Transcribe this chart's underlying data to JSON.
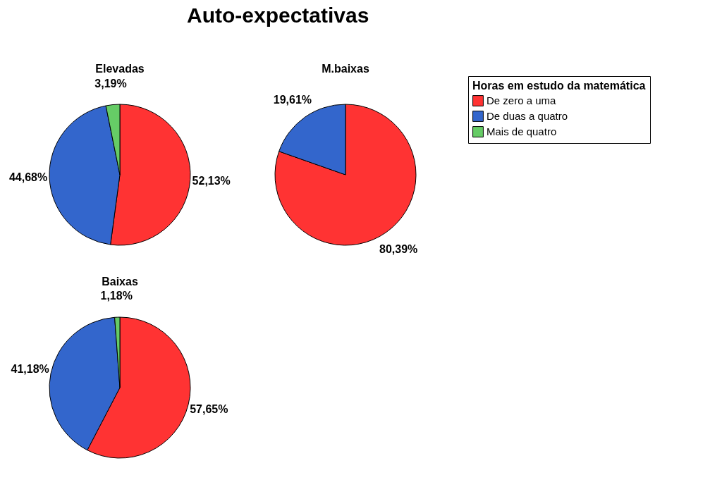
{
  "chart_data": {
    "type": "pie",
    "title": "Auto-expectativas",
    "categories": [
      "De zero a uma",
      "De duas a quatro",
      "Mais de quatro"
    ],
    "colors": [
      "#ff3333",
      "#3366cc",
      "#66cc66"
    ],
    "legend": "right",
    "legend_title": "Horas em estudo da matemática",
    "series": [
      {
        "name": "Elevadas",
        "values": [
          52.13,
          44.68,
          3.19
        ],
        "value_labels": [
          "52,13%",
          "44,68%",
          "3,19%"
        ]
      },
      {
        "name": "M.baixas",
        "values": [
          80.39,
          19.61,
          null
        ],
        "value_labels": [
          "80,39%",
          "19,61%",
          null
        ]
      },
      {
        "name": "Baixas",
        "values": [
          57.65,
          41.18,
          1.18
        ],
        "value_labels": [
          "57,65%",
          "41,18%",
          "1,18%"
        ]
      }
    ]
  }
}
